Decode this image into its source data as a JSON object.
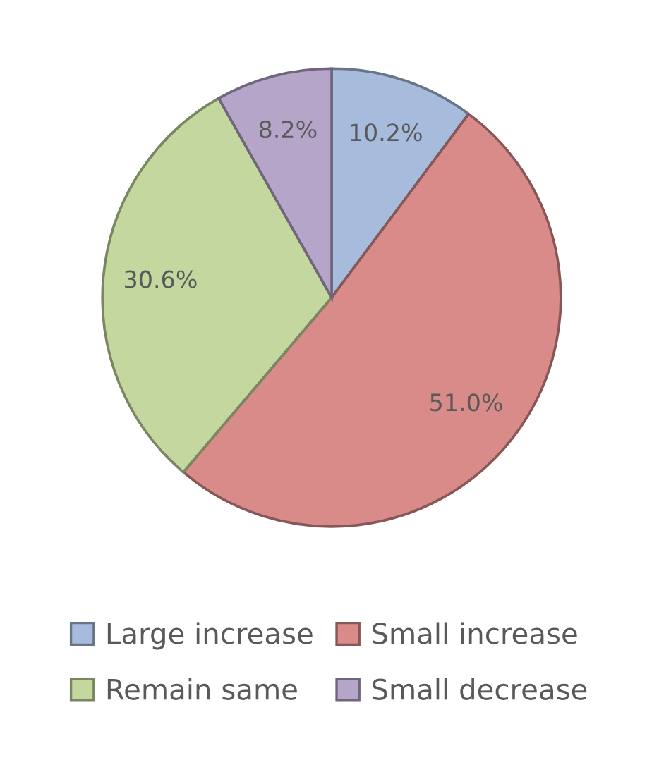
{
  "chart_data": {
    "type": "pie",
    "categories": [
      "Large increase",
      "Small increase",
      "Remain same",
      "Small decrease"
    ],
    "values": [
      10.2,
      51.0,
      30.6,
      8.2
    ],
    "value_labels": [
      "10.2%",
      "51.0%",
      "30.6%",
      "8.2%"
    ],
    "colors": [
      "#a7bcdd",
      "#d98b8a",
      "#c4d79e",
      "#b5a5c8"
    ],
    "legend": "bottom"
  }
}
